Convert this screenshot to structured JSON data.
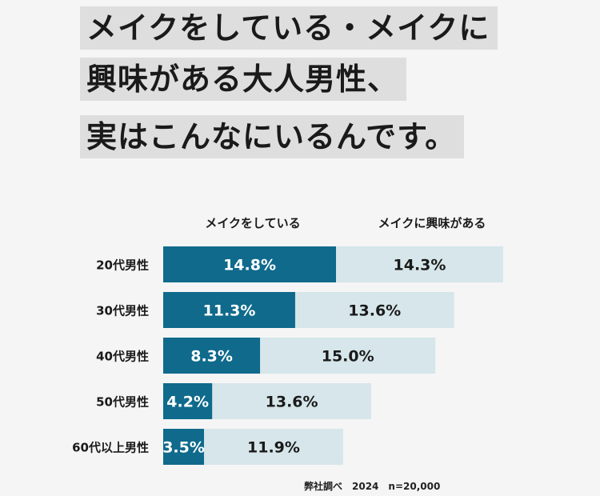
{
  "headline": {
    "lines": [
      "メイクをしている・メイクに",
      "興味がある大人男性、",
      "実はこんなにいるんです。"
    ]
  },
  "colors": {
    "series_1": "#0f6a8c",
    "series_2": "#d6e6ea",
    "headline_bg": "#dedede",
    "background": "#f5f5f5"
  },
  "chart_data": {
    "type": "bar",
    "orientation": "horizontal",
    "stacked": true,
    "categories": [
      "20代男性",
      "30代男性",
      "40代男性",
      "50代男性",
      "60代以上男性"
    ],
    "series": [
      {
        "name": "メイクをしている",
        "values": [
          14.8,
          11.3,
          8.3,
          4.2,
          3.5
        ]
      },
      {
        "name": "メイクに興味がある",
        "values": [
          14.3,
          13.6,
          15.0,
          13.6,
          11.9
        ]
      }
    ],
    "value_labels": [
      [
        "14.8%",
        "11.3%",
        "8.3%",
        "4.2%",
        "3.5%"
      ],
      [
        "14.3%",
        "13.6%",
        "15.0%",
        "13.6%",
        "11.9%"
      ]
    ],
    "xlim": [
      0,
      30
    ],
    "legend_position": "top",
    "grid": false
  },
  "footer": {
    "source": "弊社調べ　2024　n=20,000"
  }
}
